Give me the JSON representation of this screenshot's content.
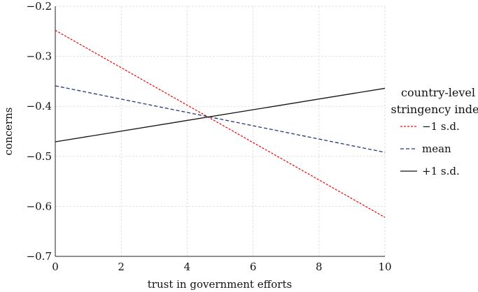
{
  "chart_data": {
    "type": "line",
    "xlabel": "trust in government efforts",
    "ylabel": "concerns",
    "xlim": [
      0,
      10
    ],
    "ylim": [
      -0.7,
      -0.2
    ],
    "xticks": [
      0,
      2,
      4,
      6,
      8,
      10
    ],
    "xtick_labels": [
      "0",
      "2",
      "4",
      "6",
      "8",
      "10"
    ],
    "yticks": [
      -0.2,
      -0.3,
      -0.4,
      -0.5,
      -0.6,
      -0.7
    ],
    "ytick_labels": [
      "−0.2",
      "−0.3",
      "−0.4",
      "−0.5",
      "−0.6",
      "−0.7"
    ],
    "grid": true,
    "legend": {
      "title_lines": [
        "country-level",
        "stringency index"
      ],
      "placement": "right"
    },
    "series": [
      {
        "name": "−1 s.d.",
        "x": [
          0,
          10
        ],
        "y": [
          -0.248,
          -0.622
        ],
        "color": "#ee1111",
        "style": "dashed-fine"
      },
      {
        "name": "mean",
        "x": [
          0,
          10
        ],
        "y": [
          -0.359,
          -0.492
        ],
        "color": "#1f3a73",
        "style": "dashed"
      },
      {
        "name": "+1 s.d.",
        "x": [
          0,
          10
        ],
        "y": [
          -0.471,
          -0.364
        ],
        "color": "#111111",
        "style": "solid"
      }
    ]
  }
}
